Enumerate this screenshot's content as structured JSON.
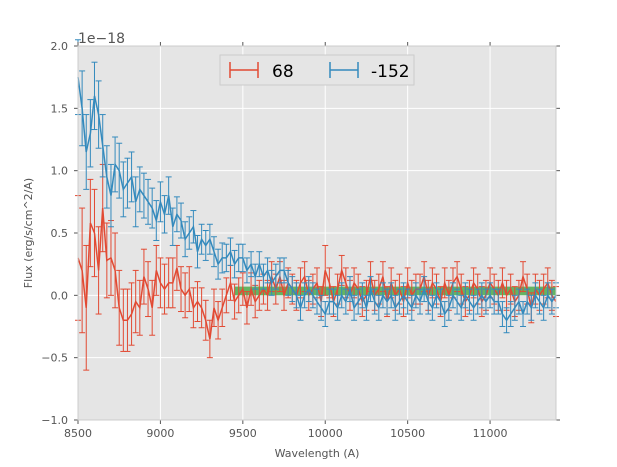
{
  "chart_data": {
    "type": "line",
    "title": "",
    "xlabel": "Wavelength (A)",
    "ylabel": "Flux (erg/s/cm^2/A)",
    "y_offset_label": "1e−18",
    "xlim": [
      8500,
      11400
    ],
    "ylim": [
      -1.0,
      2.0
    ],
    "xticks": [
      8500,
      9000,
      9500,
      10000,
      10500,
      11000
    ],
    "xtick_labels": [
      "8500",
      "9000",
      "9500",
      "10000",
      "10500",
      "11000"
    ],
    "yticks": [
      -1.0,
      -0.5,
      0.0,
      0.5,
      1.0,
      1.5,
      2.0
    ],
    "ytick_labels": [
      "−1.0",
      "−0.5",
      "0.0",
      "0.5",
      "1.0",
      "1.5",
      "2.0"
    ],
    "grid": true,
    "legend_position": "top-center",
    "band": {
      "x_start": 9450,
      "x_end": 11400,
      "y_low": 0.0,
      "y_high": 0.07,
      "color": "#2ca02c"
    },
    "series": [
      {
        "name": "68",
        "color": "#e24a33",
        "x": [
          8500,
          8525,
          8550,
          8575,
          8600,
          8625,
          8650,
          8675,
          8700,
          8725,
          8750,
          8775,
          8800,
          8825,
          8850,
          8875,
          8900,
          8925,
          8950,
          8975,
          9000,
          9025,
          9050,
          9075,
          9100,
          9125,
          9150,
          9175,
          9200,
          9225,
          9250,
          9275,
          9300,
          9325,
          9350,
          9375,
          9400,
          9425,
          9450,
          9475,
          9500,
          9525,
          9550,
          9575,
          9600,
          9625,
          9650,
          9675,
          9700,
          9725,
          9750,
          9775,
          9800,
          9825,
          9850,
          9875,
          9900,
          9925,
          9950,
          9975,
          10000,
          10025,
          10050,
          10075,
          10100,
          10125,
          10150,
          10175,
          10200,
          10225,
          10250,
          10275,
          10300,
          10325,
          10350,
          10375,
          10400,
          10425,
          10450,
          10475,
          10500,
          10525,
          10550,
          10575,
          10600,
          10625,
          10650,
          10675,
          10700,
          10725,
          10750,
          10775,
          10800,
          10825,
          10850,
          10875,
          10900,
          10925,
          10950,
          10975,
          11000,
          11025,
          11050,
          11075,
          11100,
          11125,
          11150,
          11175,
          11200,
          11225,
          11250,
          11275,
          11300,
          11325,
          11350,
          11375,
          11400
        ],
        "y": [
          0.3,
          0.2,
          -0.1,
          0.58,
          0.5,
          0.2,
          0.7,
          0.28,
          0.3,
          0.2,
          -0.1,
          -0.2,
          -0.2,
          -0.15,
          -0.05,
          -0.1,
          0.15,
          0.05,
          -0.1,
          0.2,
          0.1,
          0.05,
          0.1,
          0.1,
          0.22,
          0.05,
          0.0,
          0.05,
          -0.1,
          -0.05,
          -0.1,
          -0.2,
          -0.35,
          -0.1,
          -0.2,
          -0.1,
          0.0,
          0.1,
          -0.05,
          0.0,
          0.05,
          -0.1,
          0.05,
          -0.05,
          0.0,
          0.05,
          0.0,
          0.15,
          0.05,
          0.15,
          0.0,
          0.1,
          0.05,
          0.0,
          0.1,
          0.15,
          0.0,
          0.05,
          0.1,
          -0.05,
          0.2,
          0.1,
          -0.05,
          0.05,
          0.2,
          0.1,
          0.0,
          0.1,
          0.05,
          -0.05,
          0.0,
          0.15,
          0.0,
          0.05,
          0.15,
          -0.05,
          0.1,
          0.0,
          0.05,
          -0.05,
          0.1,
          0.0,
          0.05,
          0.05,
          0.15,
          0.0,
          0.1,
          0.05,
          -0.05,
          0.1,
          0.0,
          0.1,
          0.15,
          0.05,
          -0.05,
          0.0,
          0.1,
          0.05,
          -0.05,
          0.0,
          0.1,
          0.05,
          0.0,
          0.1,
          0.0,
          0.05,
          -0.05,
          0.0,
          0.15,
          0.05,
          -0.1,
          0.05,
          0.0,
          0.05,
          0.1,
          0.0,
          -0.05
        ],
        "err": [
          0.5,
          0.5,
          0.5,
          0.35,
          0.35,
          0.35,
          0.35,
          0.3,
          0.3,
          0.3,
          0.3,
          0.25,
          0.25,
          0.25,
          0.25,
          0.22,
          0.22,
          0.22,
          0.22,
          0.2,
          0.2,
          0.2,
          0.2,
          0.2,
          0.18,
          0.18,
          0.18,
          0.18,
          0.16,
          0.16,
          0.16,
          0.16,
          0.15,
          0.15,
          0.15,
          0.15,
          0.14,
          0.14,
          0.14,
          0.14,
          0.13,
          0.13,
          0.13,
          0.13,
          0.12,
          0.12,
          0.12,
          0.12,
          0.12,
          0.12,
          0.12,
          0.12,
          0.12,
          0.12,
          0.12,
          0.12,
          0.12,
          0.12,
          0.12,
          0.12,
          0.2,
          0.12,
          0.12,
          0.12,
          0.12,
          0.12,
          0.12,
          0.12,
          0.12,
          0.12,
          0.12,
          0.12,
          0.12,
          0.12,
          0.12,
          0.12,
          0.12,
          0.12,
          0.12,
          0.12,
          0.12,
          0.12,
          0.12,
          0.12,
          0.12,
          0.12,
          0.12,
          0.12,
          0.12,
          0.12,
          0.12,
          0.12,
          0.12,
          0.12,
          0.12,
          0.12,
          0.12,
          0.12,
          0.12,
          0.12,
          0.12,
          0.12,
          0.12,
          0.12,
          0.12,
          0.12,
          0.12,
          0.12,
          0.12,
          0.12,
          0.12,
          0.12,
          0.12,
          0.12,
          0.12,
          0.12,
          0.12
        ]
      },
      {
        "name": "-152",
        "color": "#348abd",
        "x": [
          8500,
          8525,
          8550,
          8575,
          8600,
          8625,
          8650,
          8675,
          8700,
          8725,
          8750,
          8775,
          8800,
          8825,
          8850,
          8875,
          8900,
          8925,
          8950,
          8975,
          9000,
          9025,
          9050,
          9075,
          9100,
          9125,
          9150,
          9175,
          9200,
          9225,
          9250,
          9275,
          9300,
          9325,
          9350,
          9375,
          9400,
          9425,
          9450,
          9475,
          9500,
          9525,
          9550,
          9575,
          9600,
          9625,
          9650,
          9675,
          9700,
          9725,
          9750,
          9775,
          9800,
          9825,
          9850,
          9875,
          9900,
          9925,
          9950,
          9975,
          10000,
          10025,
          10050,
          10075,
          10100,
          10125,
          10150,
          10175,
          10200,
          10225,
          10250,
          10275,
          10300,
          10325,
          10350,
          10375,
          10400,
          10425,
          10450,
          10475,
          10500,
          10525,
          10550,
          10575,
          10600,
          10625,
          10650,
          10675,
          10700,
          10725,
          10750,
          10775,
          10800,
          10825,
          10850,
          10875,
          10900,
          10925,
          10950,
          10975,
          11000,
          11025,
          11050,
          11075,
          11100,
          11125,
          11150,
          11175,
          11200,
          11225,
          11250,
          11275,
          11300,
          11325,
          11350,
          11375,
          11400
        ],
        "y": [
          1.75,
          1.5,
          1.15,
          1.3,
          1.6,
          1.45,
          1.2,
          0.95,
          0.8,
          1.05,
          1.0,
          0.85,
          0.9,
          0.95,
          0.75,
          0.85,
          0.8,
          0.75,
          0.7,
          0.6,
          0.75,
          0.65,
          0.8,
          0.55,
          0.65,
          0.6,
          0.45,
          0.5,
          0.55,
          0.35,
          0.45,
          0.4,
          0.45,
          0.35,
          0.25,
          0.3,
          0.3,
          0.35,
          0.25,
          0.3,
          0.3,
          0.2,
          0.25,
          0.15,
          0.25,
          0.15,
          0.2,
          0.1,
          0.15,
          0.2,
          0.2,
          0.1,
          0.05,
          0.0,
          -0.1,
          0.0,
          0.05,
          0.0,
          -0.05,
          -0.1,
          -0.15,
          -0.05,
          -0.05,
          -0.1,
          0.0,
          -0.05,
          0.05,
          -0.1,
          -0.05,
          0.0,
          -0.1,
          0.05,
          -0.05,
          -0.1,
          0.0,
          -0.05,
          0.0,
          -0.1,
          -0.05,
          0.0,
          -0.05,
          -0.1,
          0.0,
          -0.05,
          0.05,
          -0.05,
          -0.1,
          0.0,
          -0.05,
          -0.15,
          -0.1,
          0.0,
          -0.05,
          -0.1,
          0.0,
          -0.05,
          -0.1,
          -0.05,
          0.0,
          -0.05,
          0.0,
          -0.05,
          -0.05,
          -0.15,
          -0.2,
          -0.15,
          -0.1,
          -0.05,
          -0.15,
          -0.05,
          -0.1,
          0.0,
          -0.05,
          -0.1,
          0.0,
          -0.05,
          0.0
        ],
        "err": [
          0.3,
          0.3,
          0.3,
          0.27,
          0.27,
          0.27,
          0.25,
          0.25,
          0.25,
          0.22,
          0.22,
          0.22,
          0.2,
          0.2,
          0.2,
          0.18,
          0.18,
          0.18,
          0.16,
          0.16,
          0.16,
          0.15,
          0.15,
          0.15,
          0.14,
          0.14,
          0.14,
          0.13,
          0.13,
          0.13,
          0.12,
          0.12,
          0.12,
          0.12,
          0.12,
          0.12,
          0.11,
          0.11,
          0.11,
          0.11,
          0.11,
          0.1,
          0.1,
          0.1,
          0.1,
          0.1,
          0.1,
          0.1,
          0.1,
          0.1,
          0.1,
          0.1,
          0.1,
          0.1,
          0.1,
          0.1,
          0.1,
          0.1,
          0.1,
          0.1,
          0.1,
          0.1,
          0.1,
          0.1,
          0.1,
          0.1,
          0.1,
          0.1,
          0.1,
          0.1,
          0.1,
          0.1,
          0.1,
          0.1,
          0.1,
          0.1,
          0.1,
          0.1,
          0.1,
          0.1,
          0.1,
          0.1,
          0.1,
          0.1,
          0.1,
          0.1,
          0.1,
          0.1,
          0.1,
          0.1,
          0.1,
          0.1,
          0.1,
          0.1,
          0.1,
          0.1,
          0.1,
          0.1,
          0.1,
          0.1,
          0.1,
          0.1,
          0.1,
          0.1,
          0.1,
          0.1,
          0.1,
          0.1,
          0.1,
          0.1,
          0.1,
          0.1,
          0.1,
          0.1,
          0.1,
          0.1,
          0.1
        ]
      }
    ]
  }
}
